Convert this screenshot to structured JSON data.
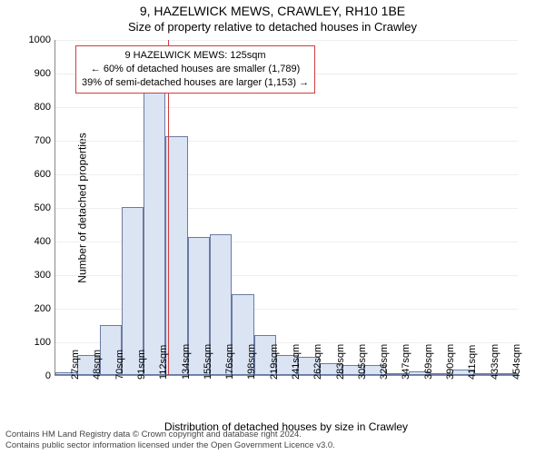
{
  "title_line1": "9, HAZELWICK MEWS, CRAWLEY, RH10 1BE",
  "title_line2": "Size of property relative to detached houses in Crawley",
  "ylabel": "Number of detached properties",
  "xlabel": "Distribution of detached houses by size in Crawley",
  "footnote_line1": "Contains HM Land Registry data © Crown copyright and database right 2024.",
  "footnote_line2": "Contains public sector information licensed under the Open Government Licence v3.0.",
  "chart": {
    "type": "histogram",
    "plot_background": "#ffffff",
    "grid_color": "#eeeeee",
    "axis_color": "#888888",
    "bar_fill": "#dbe4f3",
    "bar_border": "#6a7aa3",
    "bar_border_width": 1,
    "tick_fontsize": 11,
    "label_fontsize": 12,
    "title_fontsize": 14,
    "subtitle_fontsize": 13,
    "ylim": [
      0,
      1000
    ],
    "ytick_step": 100,
    "yticks": [
      0,
      100,
      200,
      300,
      400,
      500,
      600,
      700,
      800,
      900,
      1000
    ],
    "x_categories": [
      "27sqm",
      "48sqm",
      "70sqm",
      "91sqm",
      "112sqm",
      "134sqm",
      "155sqm",
      "176sqm",
      "198sqm",
      "219sqm",
      "241sqm",
      "262sqm",
      "283sqm",
      "305sqm",
      "326sqm",
      "347sqm",
      "369sqm",
      "390sqm",
      "411sqm",
      "433sqm",
      "454sqm"
    ],
    "values": [
      8,
      60,
      150,
      500,
      870,
      710,
      410,
      420,
      240,
      120,
      60,
      55,
      35,
      30,
      30,
      5,
      10,
      0,
      15,
      0,
      5
    ],
    "reference_line": {
      "x_value_sqm": 125,
      "color": "#d23c3c",
      "width": 1
    },
    "annotation": {
      "border_color": "#d23c3c",
      "lines": [
        "9 HAZELWICK MEWS: 125sqm",
        "← 60% of detached houses are smaller (1,789)",
        "39% of semi-detached houses are larger (1,153) →"
      ]
    }
  }
}
